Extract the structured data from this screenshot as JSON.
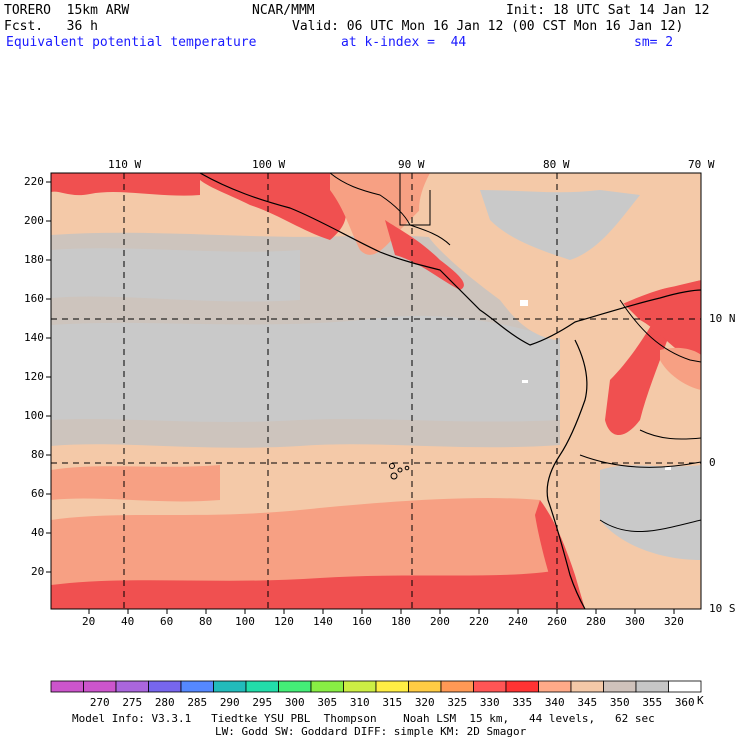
{
  "header": {
    "model": "TORERO  15km ARW",
    "org": "NCAR/MMM",
    "init": "Init: 18 UTC Sat 14 Jan 12",
    "fcst": "Fcst.   36 h",
    "valid": "Valid: 06 UTC Mon 16 Jan 12 (00 CST Mon 16 Jan 12)",
    "field": "Equivalent potential temperature",
    "level": "at k-index =  44",
    "smooth": "sm= 2"
  },
  "top_lon_labels": [
    "110 W",
    "100 W",
    "90 W",
    "80 W",
    "70 W"
  ],
  "right_lat_labels": [
    "10 N",
    "0",
    "10 S"
  ],
  "y_ticks": [
    "220",
    "200",
    "180",
    "160",
    "140",
    "120",
    "100",
    "80",
    "60",
    "40",
    "20"
  ],
  "x_ticks": [
    "20",
    "40",
    "60",
    "80",
    "100",
    "120",
    "140",
    "160",
    "180",
    "200",
    "220",
    "240",
    "260",
    "280",
    "300",
    "320"
  ],
  "colorbar": {
    "labels": [
      "270",
      "275",
      "280",
      "285",
      "290",
      "295",
      "300",
      "305",
      "310",
      "315",
      "320",
      "325",
      "330",
      "335",
      "340",
      "345",
      "350",
      "355",
      "360"
    ],
    "unit": "K",
    "colors": [
      "#cc55cc",
      "#aa66dd",
      "#7766ee",
      "#5588ff",
      "#22bbbb",
      "#22ddaa",
      "#44ee77",
      "#88ee44",
      "#ccee44",
      "#ffee44",
      "#ffcc44",
      "#ff9955",
      "#ff5555",
      "#ff3333",
      "#ffaa88",
      "#f4c9a8",
      "#cfc2bb",
      "#c6c6c6",
      "#ffffff"
    ]
  },
  "footer": {
    "line1": "Model Info: V3.3.1   Tiedtke YSU PBL  Thompson    Noah LSM  15 km,   44 levels,   62 sec",
    "line2": "LW: Godd SW: Goddard DIFF: simple KM: 2D Smagor"
  },
  "colors": {
    "hot_red": "#f05050",
    "salmon": "#f7a083",
    "peach": "#f4c9a8",
    "taupe": "#cdc4bd",
    "gray": "#c9c9c9",
    "blue_text": "#1a1aff"
  }
}
